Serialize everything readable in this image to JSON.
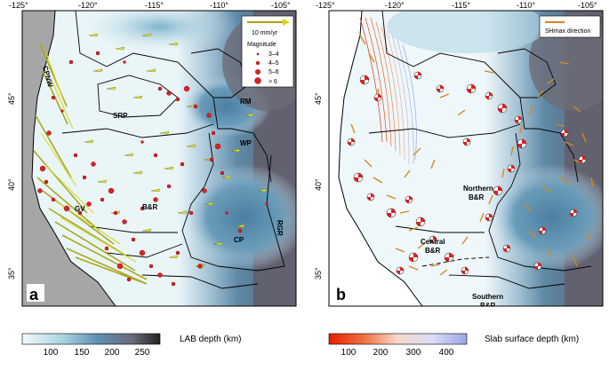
{
  "panel_a": {
    "letter": "a",
    "lon_ticks": [
      "-125°",
      "-120°",
      "-115°",
      "-110°",
      "-105°"
    ],
    "lat_ticks": [
      "45°",
      "40°",
      "35°"
    ],
    "region_labels": {
      "cpnw": "CPNW",
      "srp": "SRP",
      "rm": "RM",
      "wp": "WP",
      "gv": "GV",
      "br": "B&R",
      "rgr": "RGR",
      "cp": "CP"
    },
    "legend": {
      "velocity_label": "10 mm/yr",
      "magnitude_title": "Magnitude",
      "magnitudes": [
        "3–4",
        "4–5",
        "5–6",
        "> 6"
      ]
    },
    "colorbar": {
      "title": "LAB depth (km)",
      "ticks": [
        "100",
        "150",
        "200",
        "250"
      ]
    },
    "colors": {
      "light": "#eaf5f8",
      "mid": "#5f97b3",
      "dark": "#6e6e7a",
      "arrow": "#e8e830",
      "quake": "#e02020"
    }
  },
  "panel_b": {
    "letter": "b",
    "lon_ticks": [
      "-125°",
      "-120°",
      "-115°",
      "-110°",
      "-105°"
    ],
    "lat_ticks": [
      "45°",
      "40°",
      "35°"
    ],
    "region_labels": {
      "northern_br_1": "Northern",
      "northern_br_2": "B&R",
      "central_br_1": "Central",
      "central_br_2": "B&R",
      "southern_br_1": "Southern",
      "southern_br_2": "B&R"
    },
    "legend": {
      "shmax_label": "SHmax direction"
    },
    "colorbar": {
      "title": "Slab surface depth (km)",
      "ticks": [
        "100",
        "200",
        "300",
        "400"
      ]
    },
    "colors": {
      "shmax": "#d08a20",
      "slab_shallow": "#e63010",
      "slab_deep": "#9aa8e8"
    }
  }
}
